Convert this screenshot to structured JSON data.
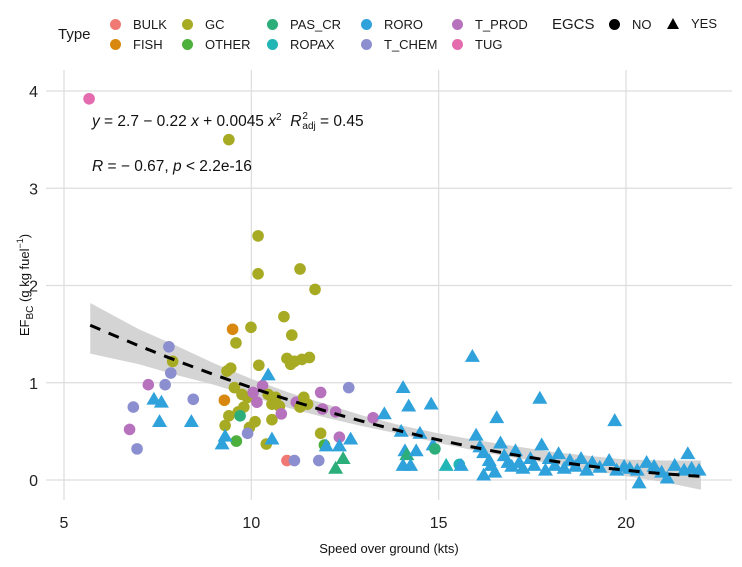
{
  "chart_data": {
    "type": "scatter",
    "title": "",
    "xlabel": "Speed over ground (kts)",
    "ylabel": {
      "main": "EF",
      "sub": "BC",
      "unit": "(g kg fuel",
      "unit_sup": "−1",
      "unit_close": ")"
    },
    "xlim": [
      4.5,
      22.8
    ],
    "ylim": [
      -0.22,
      4.1
    ],
    "x_ticks": [
      5,
      10,
      15,
      20
    ],
    "y_ticks": [
      0,
      1,
      2,
      3,
      4
    ],
    "x_tick_labels": [
      "5",
      "10",
      "15",
      "20"
    ],
    "y_tick_labels": [
      "0",
      "1",
      "2",
      "3",
      "4"
    ],
    "grid": true,
    "legend_placement": "top",
    "legend": {
      "type_title": "Type",
      "types": [
        {
          "name": "BULK",
          "color": "#F07A73"
        },
        {
          "name": "FISH",
          "color": "#D8880F"
        },
        {
          "name": "GC",
          "color": "#A7AA23"
        },
        {
          "name": "OTHER",
          "color": "#4DAF3C"
        },
        {
          "name": "PAS_CR",
          "color": "#2BAE7A"
        },
        {
          "name": "ROPAX",
          "color": "#22B5B5"
        },
        {
          "name": "RORO",
          "color": "#2FA2DC"
        },
        {
          "name": "T_CHEM",
          "color": "#8B8ECF"
        },
        {
          "name": "T_PROD",
          "color": "#B772BE"
        },
        {
          "name": "TUG",
          "color": "#E36BAE"
        }
      ],
      "egcs_title": "EGCS",
      "egcs": [
        {
          "name": "NO",
          "shape": "circle"
        },
        {
          "name": "YES",
          "shape": "triangle"
        }
      ]
    },
    "annotations": {
      "equation": {
        "y": "y",
        "eq": " = 2.7 − 0.22 ",
        "x1": "x",
        "plus": " + 0.0045 ",
        "x2": "x",
        "sq": "2",
        "r": "R",
        "r_sup": "2",
        "r_sub": "adj",
        "r_val": " = 0.45"
      },
      "correlation": {
        "r": "R",
        "r_val": " = − 0.67, ",
        "p": "p",
        "p_val": " < 2.2e-16"
      }
    },
    "fit": {
      "type": "quadratic",
      "coefficients": [
        2.7,
        -0.22,
        0.0045
      ],
      "x_range": [
        5.7,
        22
      ],
      "line_style": "dashed",
      "line_color": "#000000",
      "ci_color": "#cccccc"
    },
    "ci_band": {
      "x": [
        5.7,
        7,
        8,
        9,
        10,
        11,
        12,
        13,
        14,
        15,
        16,
        17,
        18,
        19,
        20,
        21,
        22
      ],
      "lower": [
        1.3,
        1.19,
        1.08,
        0.98,
        0.86,
        0.74,
        0.64,
        0.55,
        0.47,
        0.38,
        0.3,
        0.23,
        0.17,
        0.1,
        0.04,
        -0.02,
        -0.1
      ],
      "upper": [
        1.82,
        1.55,
        1.38,
        1.2,
        1.04,
        0.9,
        0.78,
        0.66,
        0.56,
        0.48,
        0.41,
        0.35,
        0.29,
        0.25,
        0.21,
        0.2,
        0.2
      ]
    },
    "points": [
      {
        "x": 5.67,
        "y": 3.92,
        "type": "TUG",
        "egcs": "NO"
      },
      {
        "x": 9.4,
        "y": 3.5,
        "type": "GC",
        "egcs": "NO"
      },
      {
        "x": 10.18,
        "y": 2.51,
        "type": "GC",
        "egcs": "NO"
      },
      {
        "x": 10.18,
        "y": 2.12,
        "type": "GC",
        "egcs": "NO"
      },
      {
        "x": 11.3,
        "y": 2.17,
        "type": "GC",
        "egcs": "NO"
      },
      {
        "x": 11.7,
        "y": 1.96,
        "type": "GC",
        "egcs": "NO"
      },
      {
        "x": 10.87,
        "y": 1.68,
        "type": "GC",
        "egcs": "NO"
      },
      {
        "x": 11.08,
        "y": 1.49,
        "type": "GC",
        "egcs": "NO"
      },
      {
        "x": 9.99,
        "y": 1.57,
        "type": "GC",
        "egcs": "NO"
      },
      {
        "x": 9.59,
        "y": 1.41,
        "type": "GC",
        "egcs": "NO"
      },
      {
        "x": 9.5,
        "y": 1.55,
        "type": "FISH",
        "egcs": "NO"
      },
      {
        "x": 10.95,
        "y": 1.25,
        "type": "GC",
        "egcs": "NO"
      },
      {
        "x": 11.15,
        "y": 1.22,
        "type": "GC",
        "egcs": "NO"
      },
      {
        "x": 11.35,
        "y": 1.24,
        "type": "GC",
        "egcs": "NO"
      },
      {
        "x": 11.55,
        "y": 1.26,
        "type": "GC",
        "egcs": "NO"
      },
      {
        "x": 11.05,
        "y": 1.19,
        "type": "GC",
        "egcs": "NO"
      },
      {
        "x": 10.2,
        "y": 1.18,
        "type": "GC",
        "egcs": "NO"
      },
      {
        "x": 9.45,
        "y": 1.15,
        "type": "GC",
        "egcs": "NO"
      },
      {
        "x": 9.35,
        "y": 1.12,
        "type": "GC",
        "egcs": "NO"
      },
      {
        "x": 7.9,
        "y": 1.22,
        "type": "GC",
        "egcs": "NO"
      },
      {
        "x": 7.8,
        "y": 1.37,
        "type": "T_CHEM",
        "egcs": "NO"
      },
      {
        "x": 7.85,
        "y": 1.1,
        "type": "T_CHEM",
        "egcs": "NO"
      },
      {
        "x": 7.25,
        "y": 0.98,
        "type": "T_PROD",
        "egcs": "NO"
      },
      {
        "x": 7.7,
        "y": 0.98,
        "type": "T_CHEM",
        "egcs": "NO"
      },
      {
        "x": 8.45,
        "y": 0.83,
        "type": "T_CHEM",
        "egcs": "NO"
      },
      {
        "x": 6.85,
        "y": 0.75,
        "type": "T_CHEM",
        "egcs": "NO"
      },
      {
        "x": 6.75,
        "y": 0.52,
        "type": "T_PROD",
        "egcs": "NO"
      },
      {
        "x": 6.95,
        "y": 0.32,
        "type": "T_CHEM",
        "egcs": "NO"
      },
      {
        "x": 7.4,
        "y": 0.83,
        "type": "RORO",
        "egcs": "YES"
      },
      {
        "x": 7.6,
        "y": 0.8,
        "type": "RORO",
        "egcs": "YES"
      },
      {
        "x": 7.55,
        "y": 0.6,
        "type": "RORO",
        "egcs": "YES"
      },
      {
        "x": 8.4,
        "y": 0.6,
        "type": "RORO",
        "egcs": "YES"
      },
      {
        "x": 9.28,
        "y": 0.82,
        "type": "FISH",
        "egcs": "NO"
      },
      {
        "x": 9.55,
        "y": 0.95,
        "type": "GC",
        "egcs": "NO"
      },
      {
        "x": 9.75,
        "y": 0.88,
        "type": "GC",
        "egcs": "NO"
      },
      {
        "x": 9.9,
        "y": 0.85,
        "type": "GC",
        "egcs": "NO"
      },
      {
        "x": 10.05,
        "y": 0.9,
        "type": "T_PROD",
        "egcs": "NO"
      },
      {
        "x": 10.3,
        "y": 0.97,
        "type": "T_PROD",
        "egcs": "NO"
      },
      {
        "x": 10.45,
        "y": 0.88,
        "type": "GC",
        "egcs": "NO"
      },
      {
        "x": 10.65,
        "y": 0.85,
        "type": "GC",
        "egcs": "NO"
      },
      {
        "x": 9.8,
        "y": 0.75,
        "type": "GC",
        "egcs": "NO"
      },
      {
        "x": 9.65,
        "y": 0.7,
        "type": "GC",
        "egcs": "NO"
      },
      {
        "x": 10.15,
        "y": 0.8,
        "type": "T_PROD",
        "egcs": "NO"
      },
      {
        "x": 10.55,
        "y": 0.78,
        "type": "GC",
        "egcs": "NO"
      },
      {
        "x": 10.75,
        "y": 0.76,
        "type": "GC",
        "egcs": "NO"
      },
      {
        "x": 11.2,
        "y": 0.8,
        "type": "T_PROD",
        "egcs": "NO"
      },
      {
        "x": 11.4,
        "y": 0.85,
        "type": "GC",
        "egcs": "NO"
      },
      {
        "x": 11.5,
        "y": 0.78,
        "type": "GC",
        "egcs": "NO"
      },
      {
        "x": 11.3,
        "y": 0.75,
        "type": "GC",
        "egcs": "NO"
      },
      {
        "x": 11.85,
        "y": 0.9,
        "type": "T_PROD",
        "egcs": "NO"
      },
      {
        "x": 12.6,
        "y": 0.95,
        "type": "T_CHEM",
        "egcs": "NO"
      },
      {
        "x": 11.9,
        "y": 0.73,
        "type": "T_PROD",
        "egcs": "NO"
      },
      {
        "x": 12.25,
        "y": 0.7,
        "type": "T_PROD",
        "egcs": "NO"
      },
      {
        "x": 13.25,
        "y": 0.64,
        "type": "T_PROD",
        "egcs": "NO"
      },
      {
        "x": 9.4,
        "y": 0.66,
        "type": "GC",
        "egcs": "NO"
      },
      {
        "x": 9.3,
        "y": 0.56,
        "type": "GC",
        "egcs": "NO"
      },
      {
        "x": 9.7,
        "y": 0.66,
        "type": "PAS_CR",
        "egcs": "NO"
      },
      {
        "x": 9.95,
        "y": 0.54,
        "type": "GC",
        "egcs": "NO"
      },
      {
        "x": 9.6,
        "y": 0.4,
        "type": "OTHER",
        "egcs": "NO"
      },
      {
        "x": 10.1,
        "y": 0.6,
        "type": "GC",
        "egcs": "NO"
      },
      {
        "x": 9.9,
        "y": 0.48,
        "type": "T_CHEM",
        "egcs": "NO"
      },
      {
        "x": 10.55,
        "y": 0.62,
        "type": "GC",
        "egcs": "NO"
      },
      {
        "x": 10.8,
        "y": 0.68,
        "type": "T_PROD",
        "egcs": "NO"
      },
      {
        "x": 10.4,
        "y": 0.37,
        "type": "GC",
        "egcs": "NO"
      },
      {
        "x": 10.55,
        "y": 0.42,
        "type": "RORO",
        "egcs": "YES"
      },
      {
        "x": 9.3,
        "y": 0.45,
        "type": "RORO",
        "egcs": "YES"
      },
      {
        "x": 9.22,
        "y": 0.37,
        "type": "RORO",
        "egcs": "YES"
      },
      {
        "x": 10.45,
        "y": 1.08,
        "type": "RORO",
        "egcs": "YES"
      },
      {
        "x": 11.85,
        "y": 0.48,
        "type": "GC",
        "egcs": "NO"
      },
      {
        "x": 11.95,
        "y": 0.36,
        "type": "OTHER",
        "egcs": "NO"
      },
      {
        "x": 12.35,
        "y": 0.44,
        "type": "T_PROD",
        "egcs": "NO"
      },
      {
        "x": 12.0,
        "y": 0.35,
        "type": "RORO",
        "egcs": "YES"
      },
      {
        "x": 12.35,
        "y": 0.35,
        "type": "RORO",
        "egcs": "YES"
      },
      {
        "x": 12.65,
        "y": 0.42,
        "type": "RORO",
        "egcs": "YES"
      },
      {
        "x": 12.45,
        "y": 0.22,
        "type": "PAS_CR",
        "egcs": "YES"
      },
      {
        "x": 12.25,
        "y": 0.12,
        "type": "PAS_CR",
        "egcs": "YES"
      },
      {
        "x": 10.95,
        "y": 0.2,
        "type": "BULK",
        "egcs": "NO"
      },
      {
        "x": 11.15,
        "y": 0.2,
        "type": "T_CHEM",
        "egcs": "NO"
      },
      {
        "x": 11.8,
        "y": 0.2,
        "type": "T_CHEM",
        "egcs": "NO"
      },
      {
        "x": 13.55,
        "y": 0.68,
        "type": "RORO",
        "egcs": "YES"
      },
      {
        "x": 14.05,
        "y": 0.95,
        "type": "RORO",
        "egcs": "YES"
      },
      {
        "x": 14.2,
        "y": 0.76,
        "type": "RORO",
        "egcs": "YES"
      },
      {
        "x": 14.8,
        "y": 0.78,
        "type": "RORO",
        "egcs": "YES"
      },
      {
        "x": 14.0,
        "y": 0.5,
        "type": "RORO",
        "egcs": "YES"
      },
      {
        "x": 14.5,
        "y": 0.48,
        "type": "RORO",
        "egcs": "YES"
      },
      {
        "x": 14.1,
        "y": 0.3,
        "type": "RORO",
        "egcs": "YES"
      },
      {
        "x": 14.15,
        "y": 0.26,
        "type": "PAS_CR",
        "egcs": "YES"
      },
      {
        "x": 14.4,
        "y": 0.3,
        "type": "RORO",
        "egcs": "YES"
      },
      {
        "x": 14.05,
        "y": 0.15,
        "type": "RORO",
        "egcs": "YES"
      },
      {
        "x": 14.25,
        "y": 0.15,
        "type": "RORO",
        "egcs": "YES"
      },
      {
        "x": 14.85,
        "y": 0.36,
        "type": "RORO",
        "egcs": "YES"
      },
      {
        "x": 14.9,
        "y": 0.32,
        "type": "PAS_CR",
        "egcs": "NO"
      },
      {
        "x": 15.2,
        "y": 0.15,
        "type": "ROPAX",
        "egcs": "YES"
      },
      {
        "x": 15.55,
        "y": 0.16,
        "type": "ROPAX",
        "egcs": "NO"
      },
      {
        "x": 15.6,
        "y": 0.15,
        "type": "RORO",
        "egcs": "YES"
      },
      {
        "x": 15.9,
        "y": 1.27,
        "type": "RORO",
        "egcs": "YES"
      },
      {
        "x": 16.0,
        "y": 0.46,
        "type": "RORO",
        "egcs": "YES"
      },
      {
        "x": 16.1,
        "y": 0.34,
        "type": "RORO",
        "egcs": "YES"
      },
      {
        "x": 16.2,
        "y": 0.28,
        "type": "RORO",
        "egcs": "YES"
      },
      {
        "x": 16.35,
        "y": 0.2,
        "type": "RORO",
        "egcs": "YES"
      },
      {
        "x": 16.4,
        "y": 0.15,
        "type": "RORO",
        "egcs": "YES"
      },
      {
        "x": 16.55,
        "y": 0.64,
        "type": "RORO",
        "egcs": "YES"
      },
      {
        "x": 16.65,
        "y": 0.38,
        "type": "RORO",
        "egcs": "YES"
      },
      {
        "x": 16.75,
        "y": 0.25,
        "type": "RORO",
        "egcs": "YES"
      },
      {
        "x": 16.85,
        "y": 0.18,
        "type": "RORO",
        "egcs": "YES"
      },
      {
        "x": 16.95,
        "y": 0.14,
        "type": "RORO",
        "egcs": "YES"
      },
      {
        "x": 16.2,
        "y": 0.05,
        "type": "RORO",
        "egcs": "YES"
      },
      {
        "x": 16.5,
        "y": 0.08,
        "type": "RORO",
        "egcs": "YES"
      },
      {
        "x": 17.05,
        "y": 0.3,
        "type": "RORO",
        "egcs": "YES"
      },
      {
        "x": 17.15,
        "y": 0.18,
        "type": "RORO",
        "egcs": "YES"
      },
      {
        "x": 17.25,
        "y": 0.12,
        "type": "RORO",
        "egcs": "YES"
      },
      {
        "x": 17.45,
        "y": 0.22,
        "type": "RORO",
        "egcs": "YES"
      },
      {
        "x": 17.55,
        "y": 0.15,
        "type": "RORO",
        "egcs": "YES"
      },
      {
        "x": 17.7,
        "y": 0.84,
        "type": "RORO",
        "egcs": "YES"
      },
      {
        "x": 17.75,
        "y": 0.36,
        "type": "RORO",
        "egcs": "YES"
      },
      {
        "x": 17.85,
        "y": 0.1,
        "type": "RORO",
        "egcs": "YES"
      },
      {
        "x": 17.95,
        "y": 0.22,
        "type": "RORO",
        "egcs": "YES"
      },
      {
        "x": 18.1,
        "y": 0.15,
        "type": "RORO",
        "egcs": "YES"
      },
      {
        "x": 18.2,
        "y": 0.27,
        "type": "RORO",
        "egcs": "YES"
      },
      {
        "x": 18.35,
        "y": 0.12,
        "type": "RORO",
        "egcs": "YES"
      },
      {
        "x": 18.5,
        "y": 0.2,
        "type": "RORO",
        "egcs": "YES"
      },
      {
        "x": 18.65,
        "y": 0.14,
        "type": "RORO",
        "egcs": "YES"
      },
      {
        "x": 18.8,
        "y": 0.22,
        "type": "RORO",
        "egcs": "YES"
      },
      {
        "x": 18.95,
        "y": 0.1,
        "type": "RORO",
        "egcs": "YES"
      },
      {
        "x": 19.1,
        "y": 0.18,
        "type": "RORO",
        "egcs": "YES"
      },
      {
        "x": 19.3,
        "y": 0.13,
        "type": "RORO",
        "egcs": "YES"
      },
      {
        "x": 19.55,
        "y": 0.2,
        "type": "RORO",
        "egcs": "YES"
      },
      {
        "x": 19.7,
        "y": 0.61,
        "type": "RORO",
        "egcs": "YES"
      },
      {
        "x": 19.75,
        "y": 0.1,
        "type": "RORO",
        "egcs": "YES"
      },
      {
        "x": 19.95,
        "y": 0.14,
        "type": "RORO",
        "egcs": "YES"
      },
      {
        "x": 20.1,
        "y": 0.12,
        "type": "RORO",
        "egcs": "YES"
      },
      {
        "x": 20.3,
        "y": 0.1,
        "type": "RORO",
        "egcs": "YES"
      },
      {
        "x": 20.35,
        "y": -0.03,
        "type": "RORO",
        "egcs": "YES"
      },
      {
        "x": 20.55,
        "y": 0.18,
        "type": "RORO",
        "egcs": "YES"
      },
      {
        "x": 20.75,
        "y": 0.14,
        "type": "RORO",
        "egcs": "YES"
      },
      {
        "x": 20.95,
        "y": 0.08,
        "type": "RORO",
        "egcs": "YES"
      },
      {
        "x": 21.1,
        "y": 0.02,
        "type": "RORO",
        "egcs": "YES"
      },
      {
        "x": 21.3,
        "y": 0.15,
        "type": "RORO",
        "egcs": "YES"
      },
      {
        "x": 21.55,
        "y": 0.1,
        "type": "RORO",
        "egcs": "YES"
      },
      {
        "x": 21.65,
        "y": 0.27,
        "type": "RORO",
        "egcs": "YES"
      },
      {
        "x": 21.75,
        "y": 0.12,
        "type": "RORO",
        "egcs": "YES"
      },
      {
        "x": 21.95,
        "y": 0.1,
        "type": "RORO",
        "egcs": "YES"
      }
    ]
  }
}
